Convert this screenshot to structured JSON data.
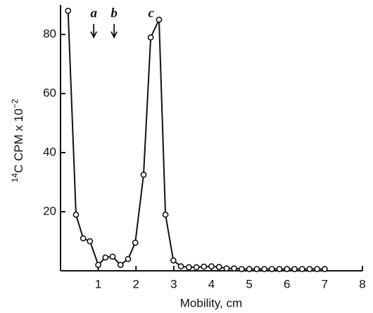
{
  "chart_data": {
    "type": "line",
    "x_label": "Mobility, cm",
    "y_label": {
      "sup_left": "14",
      "main": "C CPM x 10",
      "sup_right": "−2"
    },
    "annotations": [
      {
        "text": "a",
        "x": 0.88,
        "arrow": true
      },
      {
        "text": "b",
        "x": 1.42,
        "arrow": true
      },
      {
        "text": "c",
        "x": 2.4,
        "arrow": false
      }
    ],
    "color": "#111111",
    "x": [
      0.2,
      0.41,
      0.6,
      0.78,
      1.0,
      1.19,
      1.38,
      1.59,
      1.79,
      1.98,
      2.2,
      2.39,
      2.61,
      2.78,
      2.99,
      3.19,
      3.4,
      3.6,
      3.8,
      4.0,
      4.2,
      4.4,
      4.6,
      4.8,
      5.0,
      5.2,
      5.4,
      5.6,
      5.8,
      6.0,
      6.2,
      6.4,
      6.6,
      6.8,
      7.0
    ],
    "values": [
      88,
      19,
      11,
      10,
      2,
      4.5,
      4.8,
      2,
      4,
      9.5,
      32.5,
      79,
      85,
      19,
      3.5,
      1.5,
      1.2,
      1.2,
      1.4,
      1.5,
      1.3,
      0.8,
      0.8,
      0.6,
      0.6,
      0.6,
      0.6,
      0.6,
      0.6,
      0.6,
      0.6,
      0.6,
      0.6,
      0.6,
      0.6
    ],
    "xlim": [
      0,
      8
    ],
    "xticks": [
      1,
      2,
      3,
      4,
      5,
      6,
      7,
      8
    ],
    "ylim": [
      0,
      90
    ],
    "yticks": [
      20,
      40,
      60,
      80
    ],
    "grid": false
  }
}
